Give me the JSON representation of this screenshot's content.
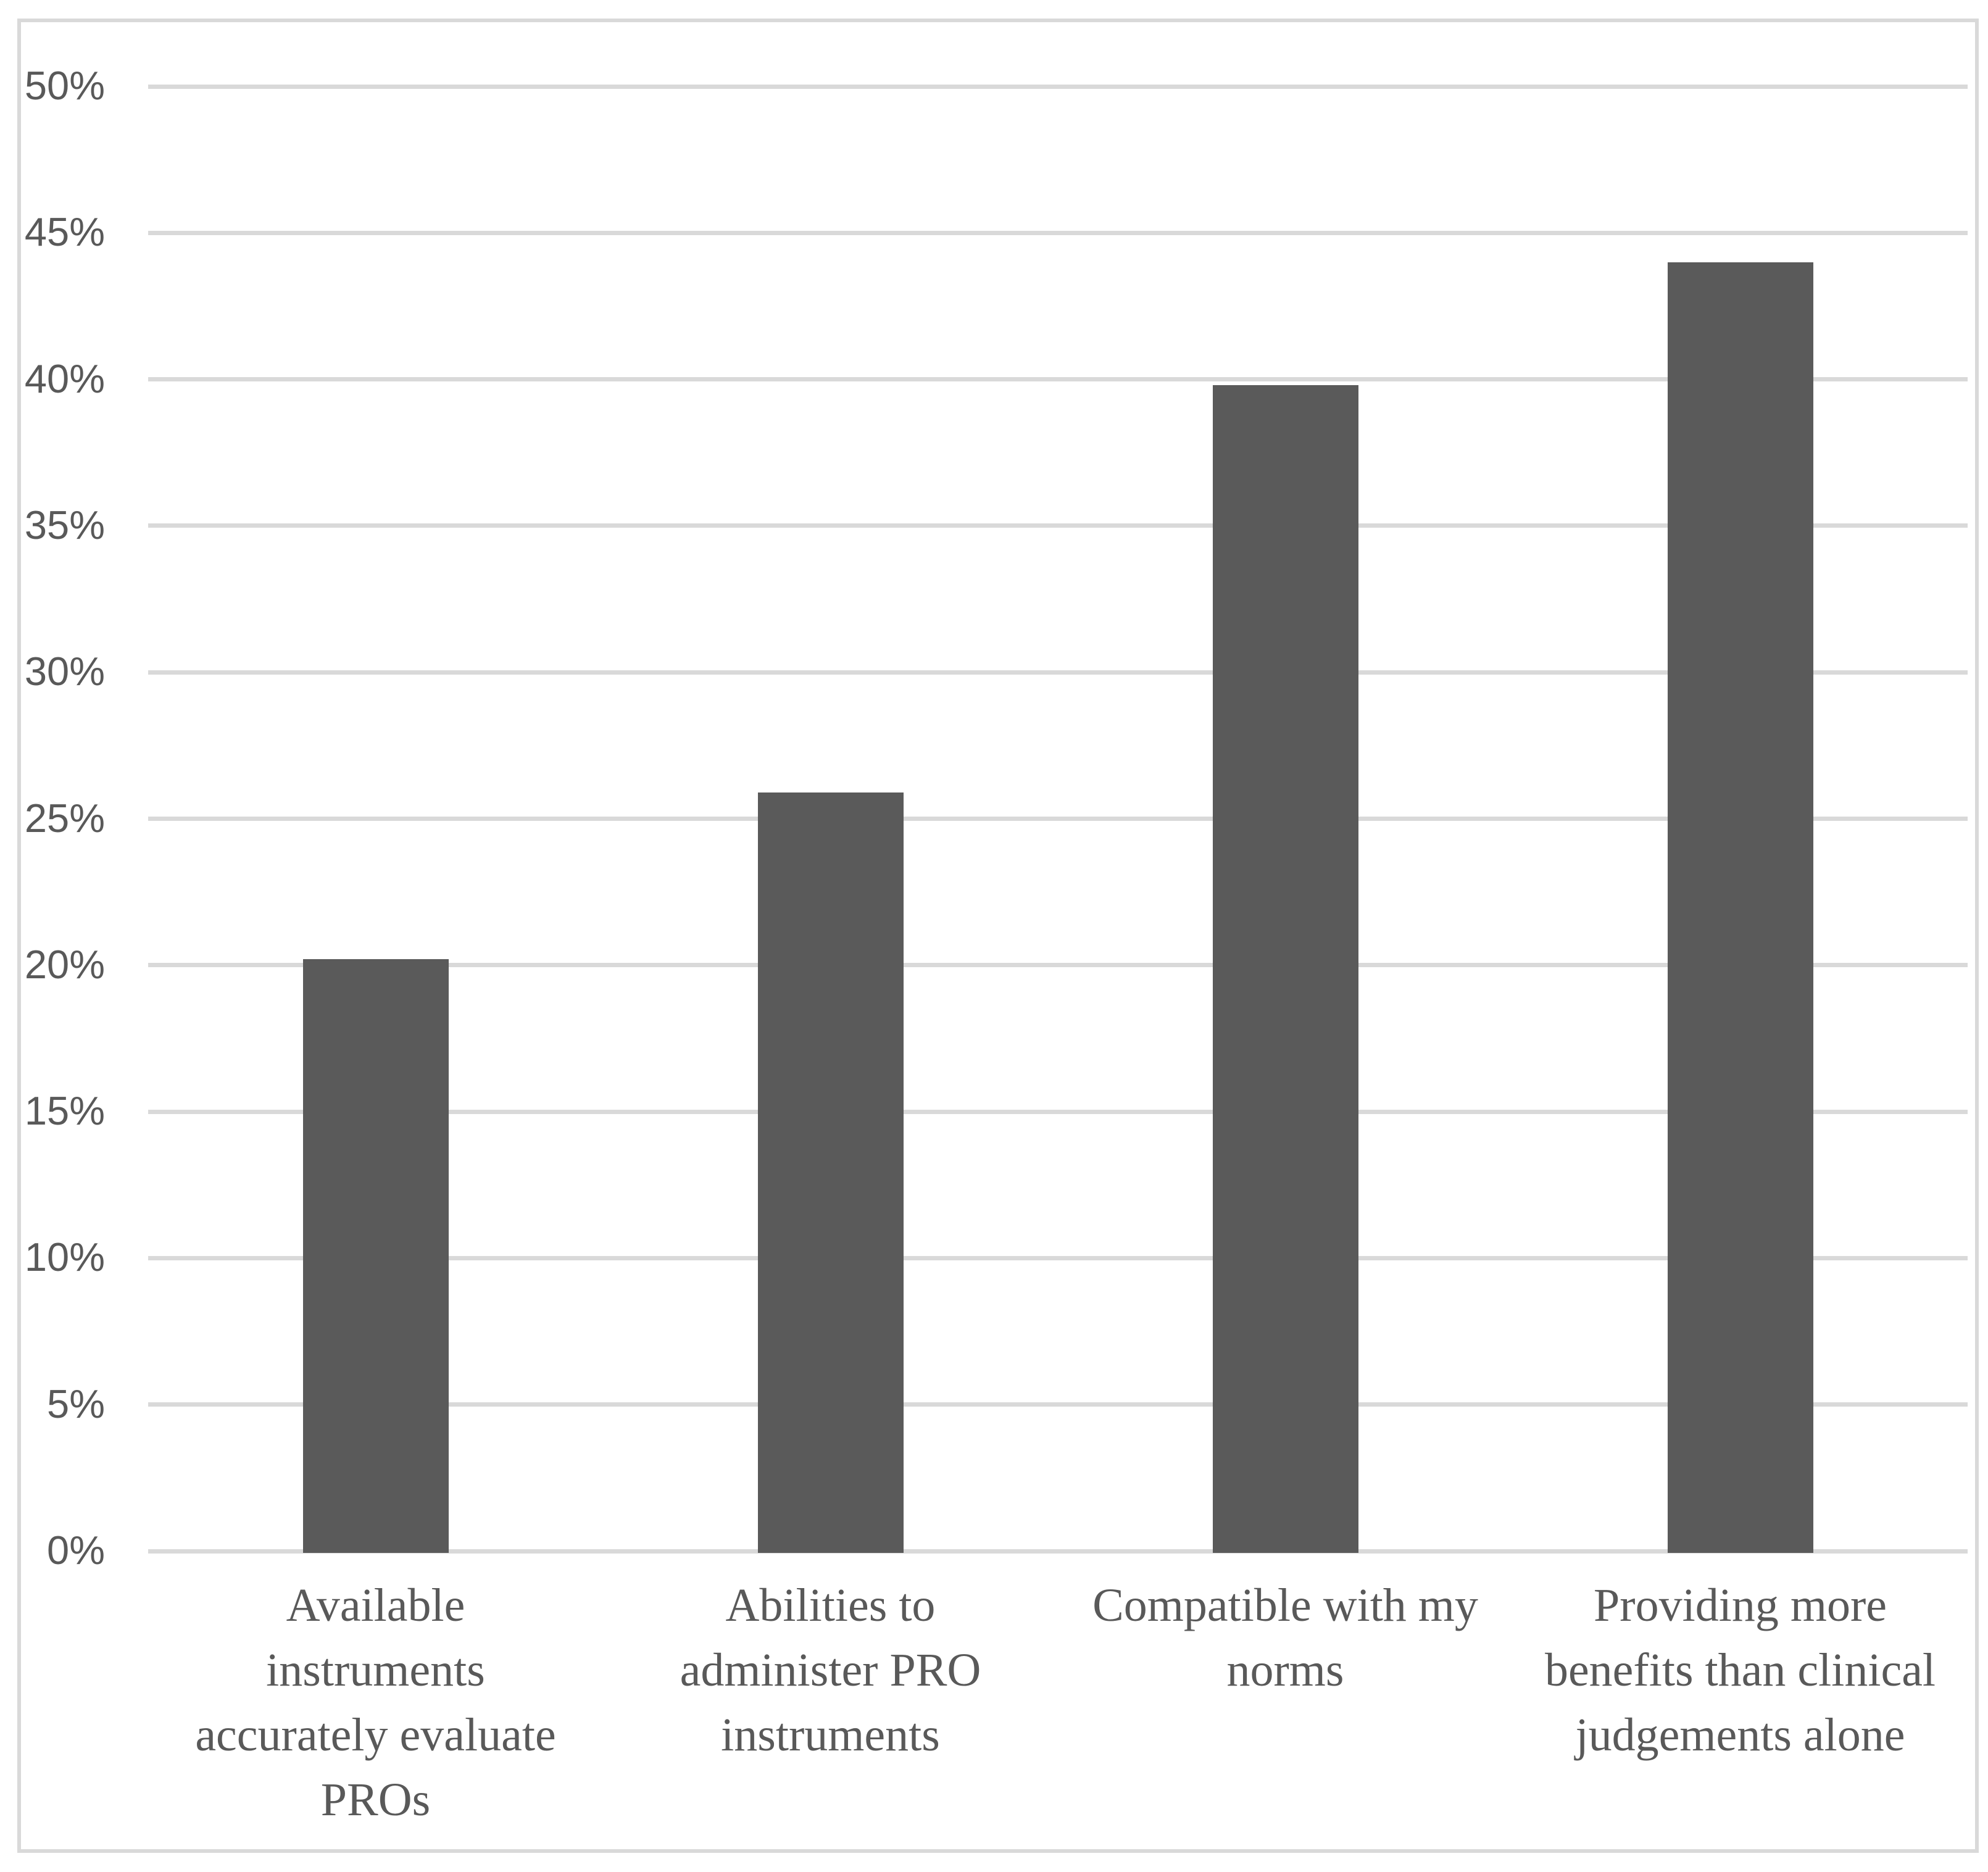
{
  "chart_data": {
    "type": "bar",
    "title": "",
    "xlabel": "",
    "ylabel": "",
    "categories": [
      "Available instruments accurately evaluate PROs",
      "Abilities to administer PRO instruments",
      "Compatible with my norms",
      "Providing more benefits than clinical judgements alone"
    ],
    "category_lines": [
      [
        "Available",
        "instruments",
        "accurately evaluate",
        "PROs"
      ],
      [
        "Abilities to",
        "administer PRO",
        "instruments"
      ],
      [
        "Compatible with my",
        "norms"
      ],
      [
        "Providing more",
        "benefits than clinical",
        "judgements alone"
      ]
    ],
    "values": [
      20.2,
      25.9,
      39.8,
      44.0
    ],
    "value_format": "percent",
    "ylim": [
      0,
      50
    ],
    "ytick_step": 5,
    "yticks": [
      {
        "v": 0,
        "label": "0%"
      },
      {
        "v": 5,
        "label": "5%"
      },
      {
        "v": 10,
        "label": "10%"
      },
      {
        "v": 15,
        "label": "15%"
      },
      {
        "v": 20,
        "label": "20%"
      },
      {
        "v": 25,
        "label": "25%"
      },
      {
        "v": 30,
        "label": "30%"
      },
      {
        "v": 35,
        "label": "35%"
      },
      {
        "v": 40,
        "label": "40%"
      },
      {
        "v": 45,
        "label": "45%"
      },
      {
        "v": 50,
        "label": "50%"
      }
    ],
    "grid": true,
    "legend": false,
    "colors": {
      "bar": "#5a5a5a",
      "gridline": "#d9d9d9",
      "frame_border": "#d9d9d9",
      "text": "#595959",
      "background": "#ffffff"
    }
  }
}
